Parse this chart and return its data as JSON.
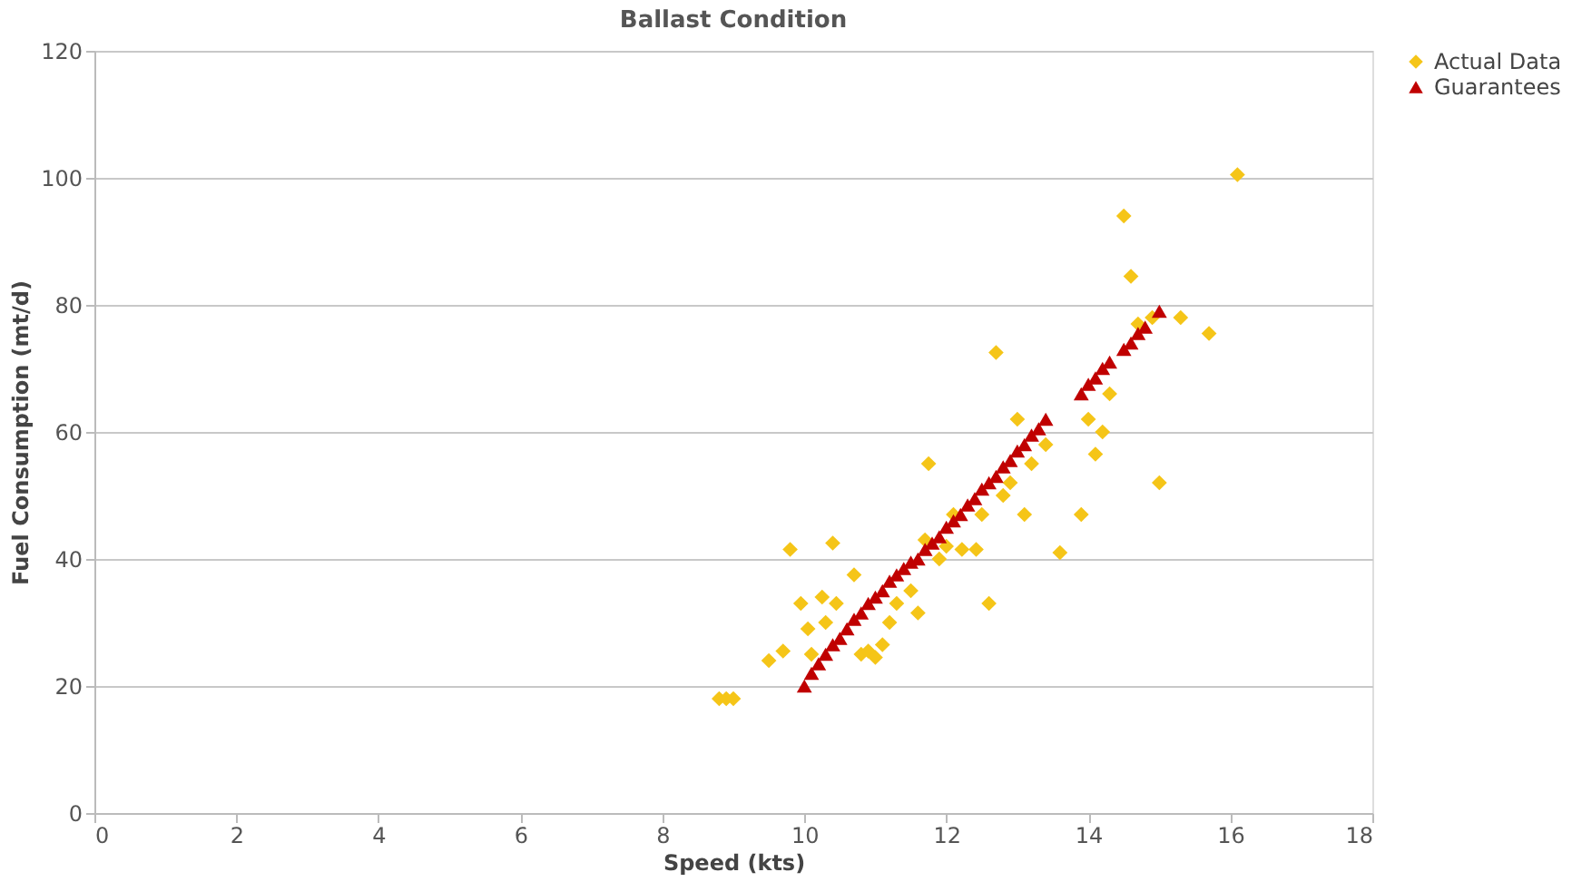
{
  "chart_data": {
    "type": "scatter",
    "title": "Ballast Condition",
    "xlabel": "Speed (kts)",
    "ylabel": "Fuel Consumption (mt/d)",
    "xlim": [
      0,
      18
    ],
    "xticks": [
      0,
      2,
      4,
      6,
      8,
      10,
      12,
      14,
      16,
      18
    ],
    "ylim": [
      0,
      120
    ],
    "yticks": [
      0,
      20,
      40,
      60,
      80,
      100,
      120
    ],
    "grid": "y",
    "legend": "right",
    "series": [
      {
        "name": "Actual Data",
        "color": "#f5c518",
        "marker": "diamond",
        "x": [
          8.8,
          8.9,
          9.0,
          9.5,
          9.7,
          9.8,
          9.95,
          10.05,
          10.1,
          10.25,
          10.3,
          10.4,
          10.45,
          10.7,
          10.8,
          10.9,
          11.0,
          11.1,
          11.2,
          11.3,
          11.5,
          11.6,
          11.7,
          11.75,
          11.9,
          12.0,
          12.1,
          12.22,
          12.42,
          12.5,
          12.6,
          12.7,
          12.8,
          12.9,
          13.0,
          13.1,
          13.2,
          13.3,
          13.4,
          13.6,
          13.9,
          14.0,
          14.1,
          14.2,
          14.3,
          14.5,
          14.6,
          14.7,
          14.9,
          15.0,
          15.3,
          15.7,
          16.1
        ],
        "values": [
          18,
          18,
          18,
          24,
          25.5,
          41.5,
          33,
          29,
          25,
          34,
          30,
          42.5,
          33,
          37.5,
          25,
          25.5,
          24.5,
          26.5,
          30,
          33,
          35,
          31.5,
          43,
          55,
          40,
          42,
          47,
          41.5,
          41.5,
          47,
          33,
          72.5,
          50,
          52,
          62,
          47,
          55,
          null,
          58,
          41,
          47,
          62,
          56.5,
          60,
          66,
          94,
          84.5,
          77,
          78,
          52,
          78,
          75.5,
          100.5
        ]
      },
      {
        "name": "Guarantees",
        "color": "#c00000",
        "marker": "triangle",
        "x": [
          10.0,
          10.1,
          10.2,
          10.3,
          10.4,
          10.5,
          10.6,
          10.7,
          10.8,
          10.9,
          11.0,
          11.1,
          11.2,
          11.3,
          11.4,
          11.5,
          11.6,
          11.7,
          11.8,
          11.9,
          12.0,
          12.1,
          12.2,
          12.3,
          12.4,
          12.5,
          12.6,
          12.7,
          12.8,
          12.9,
          13.0,
          13.1,
          13.2,
          13.3,
          13.4,
          13.9,
          14.0,
          14.1,
          14.2,
          14.3,
          14.5,
          14.6,
          14.7,
          14.8,
          15.0
        ],
        "values": [
          20,
          22,
          23.5,
          25,
          26.5,
          27.5,
          29,
          30.5,
          31.5,
          33,
          34,
          35,
          36.5,
          37.5,
          38.5,
          39.5,
          40,
          41.5,
          42.5,
          43.5,
          45,
          46,
          47,
          48.5,
          49.5,
          51,
          52,
          53,
          54.5,
          55.5,
          57,
          58,
          59.5,
          60.5,
          62,
          66,
          67.5,
          68.5,
          70,
          71,
          73,
          74,
          75.5,
          76.5,
          79
        ]
      }
    ]
  }
}
